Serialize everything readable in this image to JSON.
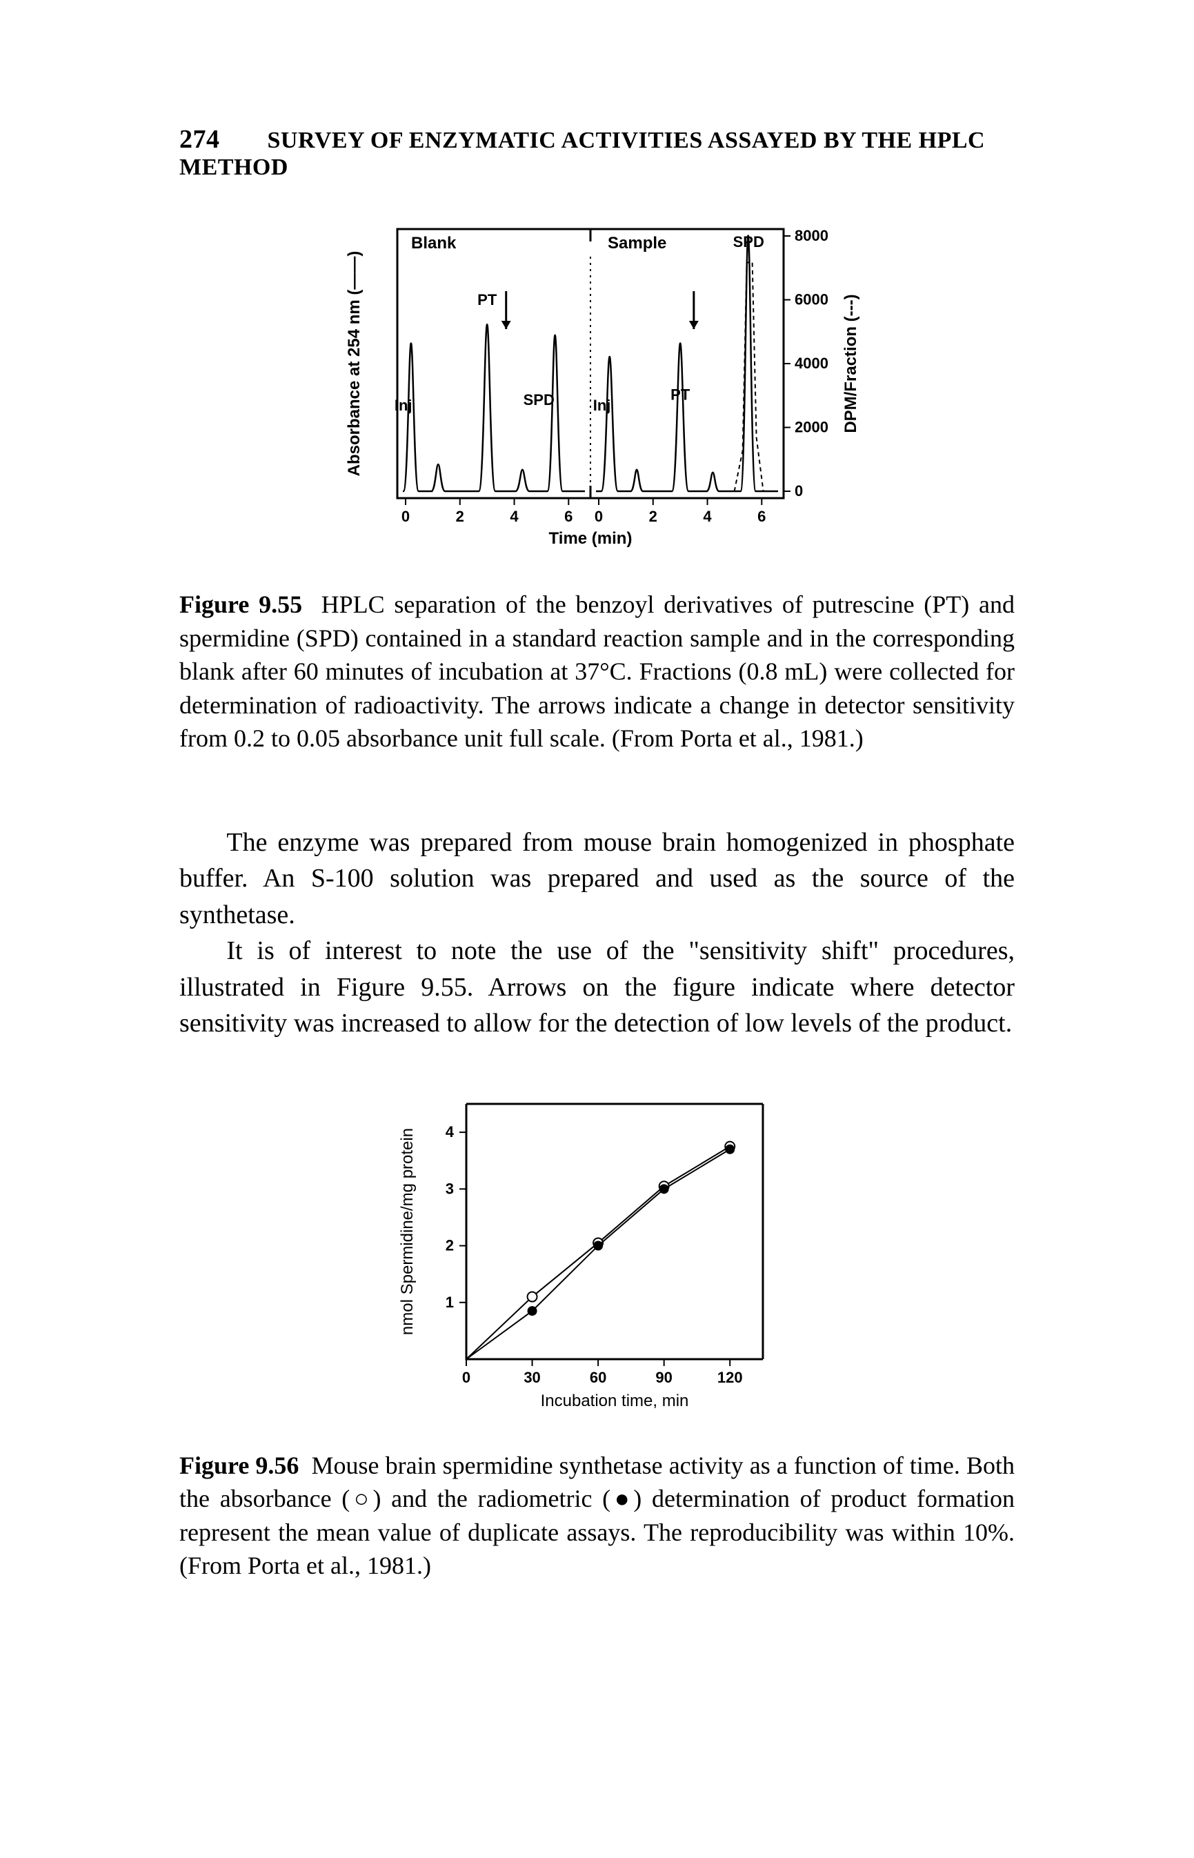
{
  "page": {
    "number": "274",
    "running_head": "SURVEY OF ENZYMATIC ACTIVITIES ASSAYED BY THE HPLC METHOD"
  },
  "figure955": {
    "type": "chromatogram",
    "stroke_color": "#000000",
    "background_color": "#ffffff",
    "line_width_frame": 3,
    "line_width_trace": 2.5,
    "y_axis_left_label": "Absorbance at 254 nm (——)",
    "y_axis_right_label": "DPM/Fraction (---)",
    "x_axis_label": "Time (min)",
    "x_ticks_left": [
      "0",
      "2",
      "4",
      "6"
    ],
    "x_ticks_right": [
      "0",
      "2",
      "4",
      "6"
    ],
    "y_right_ticks": [
      "0",
      "2000",
      "4000",
      "6000",
      "8000"
    ],
    "panels": {
      "left": {
        "title": "Blank",
        "peaks": {
          "Inj": 0.2,
          "PT": 3.0,
          "SPD": 5.5
        }
      },
      "right": {
        "title": "Sample",
        "peaks": {
          "Inj": 0.4,
          "PT": 3.0,
          "SPD": 5.5
        }
      }
    },
    "peak_labels": [
      "Inj",
      "PT",
      "SPD"
    ],
    "tick_fontsize": 22,
    "label_fontsize": 24,
    "title_fontsize": 24,
    "caption_label": "Figure 9.55",
    "caption_text": "HPLC separation of the benzoyl derivatives of putrescine (PT) and spermidine (SPD) contained in a standard reaction sample and in the corresponding blank after 60 minutes of incubation at 37°C. Fractions (0.8 mL) were collected for determination of radioactivity. The arrows indicate a change in detector sensitivity from 0.2 to 0.05 absorbance unit full scale. (From Porta et al., 1981.)"
  },
  "body": {
    "p1": "The enzyme was prepared from mouse brain homogenized in phosphate buffer. An S-100 solution was prepared and used as the source of the synthetase.",
    "p2": "It is of interest to note the use of the \"sensitivity shift\" procedures, illustrated in Figure 9.55. Arrows on the figure indicate where detector sensitivity was increased to allow for the detection of low levels of the product."
  },
  "figure956": {
    "type": "line-scatter",
    "stroke_color": "#000000",
    "background_color": "#ffffff",
    "line_width_frame": 3,
    "line_width_trace": 2,
    "x_label": "Incubation time, min",
    "y_label": "nmol Spermidine/mg protein",
    "x_ticks": [
      "0",
      "30",
      "60",
      "90",
      "120"
    ],
    "y_ticks": [
      "1",
      "2",
      "3",
      "4"
    ],
    "xlim": [
      0,
      135
    ],
    "ylim": [
      0,
      4.5
    ],
    "series": [
      {
        "name": "absorbance",
        "marker": "open-circle",
        "data": [
          [
            0,
            0
          ],
          [
            30,
            1.1
          ],
          [
            60,
            2.05
          ],
          [
            90,
            3.05
          ],
          [
            120,
            3.75
          ]
        ]
      },
      {
        "name": "radiometric",
        "marker": "filled-circle",
        "data": [
          [
            0,
            0
          ],
          [
            30,
            0.85
          ],
          [
            60,
            2.0
          ],
          [
            90,
            3.0
          ],
          [
            120,
            3.7
          ]
        ]
      }
    ],
    "marker_radius": 7,
    "tick_fontsize": 22,
    "label_fontsize": 24,
    "caption_label": "Figure 9.56",
    "caption_text": "Mouse brain spermidine synthetase activity as a function of time. Both the absorbance (○) and the radiometric (●) determination of product formation represent the mean value of duplicate assays. The reproducibility was within 10%. (From Porta et al., 1981.)"
  }
}
